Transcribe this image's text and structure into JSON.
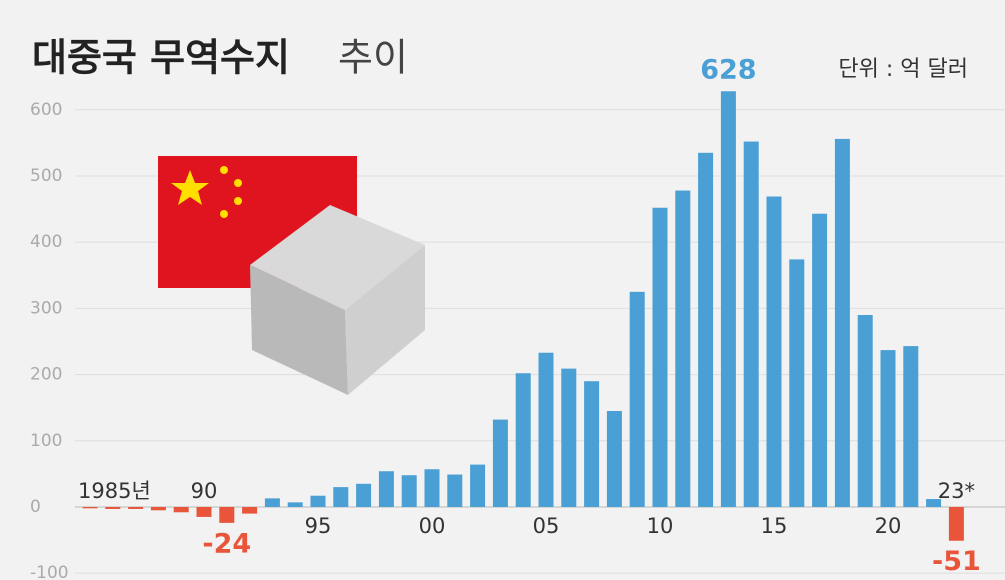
{
  "chart_data": {
    "type": "bar",
    "title": "대중국 무역수지",
    "title_light": "추이",
    "unit": "단위 : 억 달러",
    "categories": [
      "1985년",
      null,
      null,
      null,
      null,
      "90",
      null,
      null,
      null,
      null,
      "95",
      null,
      null,
      null,
      null,
      "00",
      null,
      null,
      null,
      null,
      "05",
      null,
      null,
      null,
      null,
      "10",
      null,
      null,
      null,
      null,
      "15",
      null,
      null,
      null,
      null,
      "20",
      null,
      null,
      "23*"
    ],
    "values": [
      -2,
      -3,
      -3,
      -5,
      -8,
      -15,
      -24,
      -10,
      13,
      7,
      17,
      30,
      35,
      54,
      48,
      57,
      49,
      64,
      132,
      202,
      233,
      209,
      190,
      145,
      325,
      452,
      478,
      535,
      628,
      552,
      469,
      374,
      443,
      556,
      290,
      237,
      243,
      12,
      -51
    ],
    "value_labels": [
      null,
      null,
      null,
      null,
      null,
      null,
      "-24",
      null,
      null,
      null,
      null,
      null,
      null,
      null,
      null,
      null,
      null,
      null,
      null,
      null,
      null,
      null,
      null,
      null,
      null,
      null,
      null,
      null,
      "628",
      null,
      null,
      null,
      null,
      null,
      null,
      null,
      null,
      null,
      "-51"
    ],
    "positive_color": "#4a9fd5",
    "negative_color": "#e8553a",
    "ylim": [
      -110,
      640
    ],
    "yticks": [
      -100,
      0,
      100,
      200,
      300,
      400,
      500,
      600
    ],
    "grid": true
  }
}
